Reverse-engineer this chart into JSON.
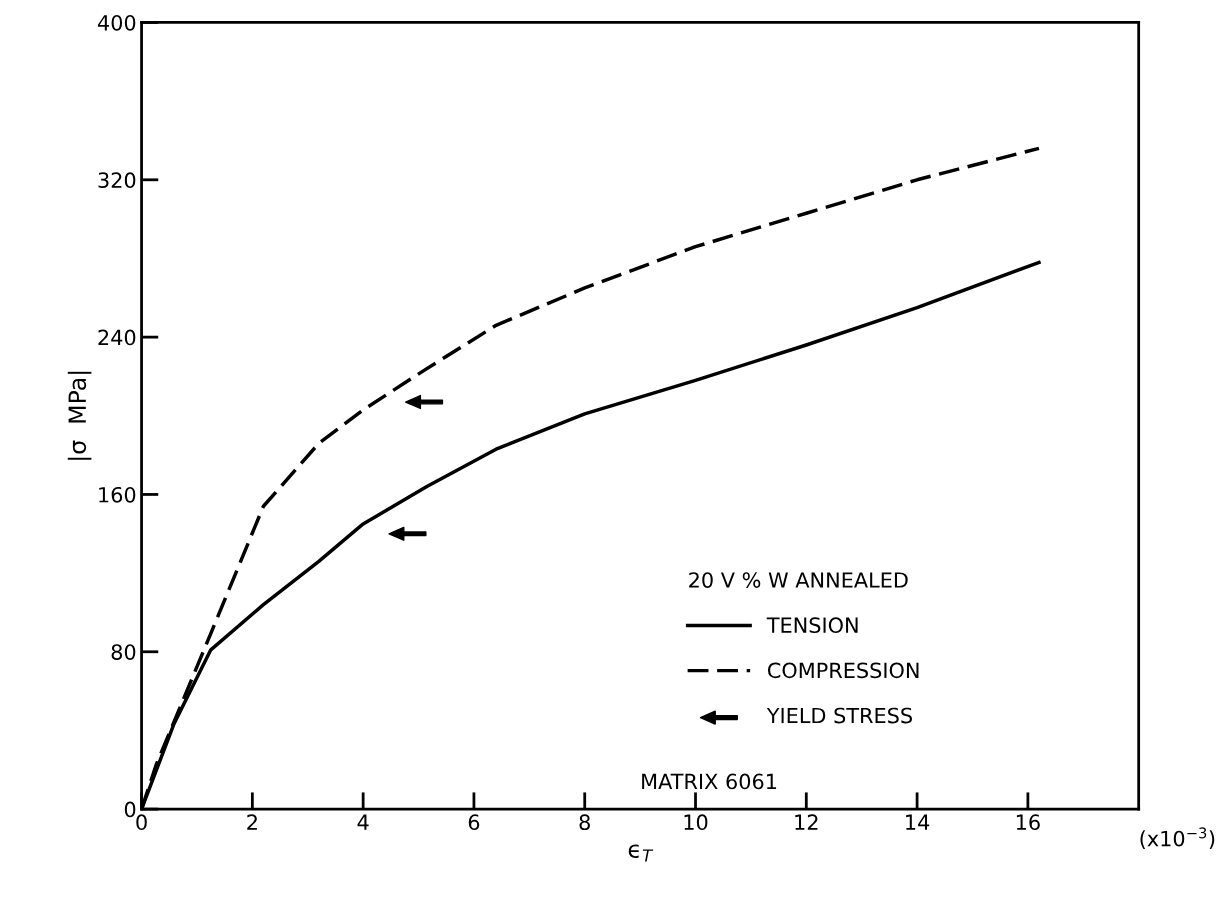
{
  "chart_data": {
    "type": "line",
    "xlabel": "ϵ$_{T}$",
    "ylabel": "|σ  MPa|",
    "legend_title": "20 V % W ANNEALED",
    "annotations": [
      "MATRIX 6061",
      "(x10$^{−3}$)"
    ],
    "xlim": [
      0,
      18
    ],
    "ylim": [
      0,
      400
    ],
    "xticks": [
      0,
      2,
      4,
      6,
      8,
      10,
      12,
      14,
      16
    ],
    "yticks": [
      0,
      80,
      160,
      240,
      320,
      400
    ],
    "grid": false,
    "legend": "bottom right",
    "series": [
      {
        "name": "TENSION",
        "color": "#000000",
        "line_style": "solid",
        "x": [
          0,
          0.58,
          1.25,
          2.2,
          3.2,
          4,
          5.15,
          6.4,
          8,
          10,
          12,
          14,
          16.2
        ],
        "values": [
          0,
          43,
          81,
          104,
          126,
          145,
          164,
          183,
          201,
          218,
          236,
          255,
          278
        ]
      },
      {
        "name": "COMPRESSION",
        "color": "#000000",
        "line_style": "dashed",
        "x": [
          0,
          0.27,
          1.26,
          2.2,
          3.2,
          4,
          5.15,
          6.4,
          8,
          10,
          12,
          14,
          16.2
        ],
        "values": [
          0,
          23,
          90,
          154,
          186,
          203,
          224,
          246,
          265,
          286,
          303,
          320,
          336
        ]
      },
      {
        "name": "YIELD STRESS",
        "type": "scatter",
        "color": "#000000",
        "x": [
          4.8,
          5.1
        ],
        "values": [
          140,
          207
        ]
      }
    ]
  }
}
